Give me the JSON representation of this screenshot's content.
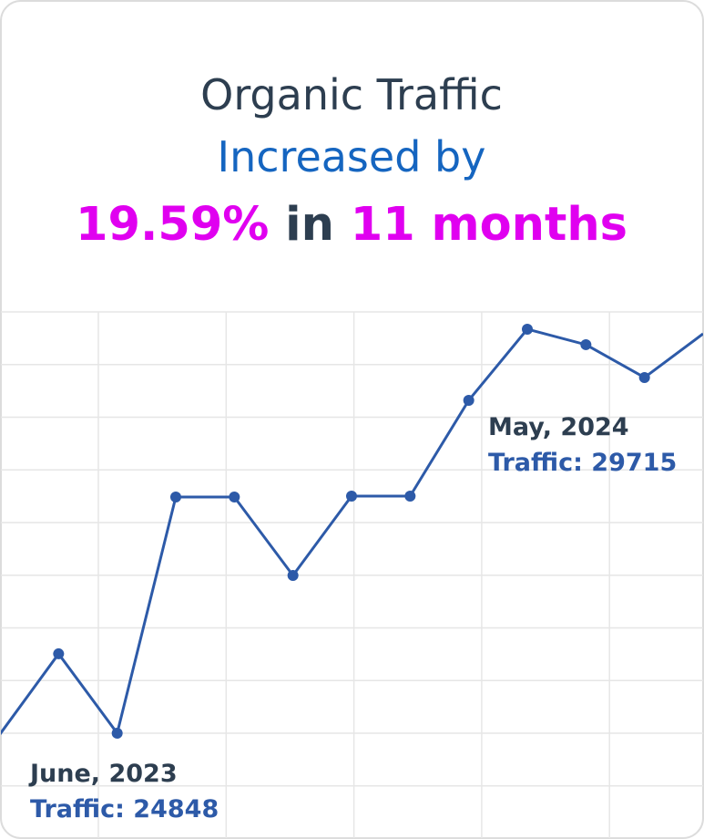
{
  "header": {
    "line1": "Organic Traffic",
    "line2": "Increased by",
    "highlight_value": "19.59%",
    "connector": "in",
    "highlight_period": "11 months"
  },
  "chart_data": {
    "type": "line",
    "categories": [
      null,
      null,
      null,
      null,
      null,
      null,
      null,
      null,
      null,
      null,
      null,
      null,
      null
    ],
    "series": [
      {
        "name": null,
        "color": "#2d5aa8",
        "values": [
          24848,
          25813,
          24859,
          27698,
          27698,
          26755,
          27709,
          27709,
          28860,
          29715,
          29529,
          29134,
          29660
        ]
      }
    ],
    "ylim": [
      23587,
      29923
    ],
    "grid": true,
    "annotations": [
      {
        "date": "June, 2023",
        "text": "Traffic: 24848"
      },
      {
        "date": "May, 2024",
        "text": "Traffic: 29715"
      }
    ]
  }
}
